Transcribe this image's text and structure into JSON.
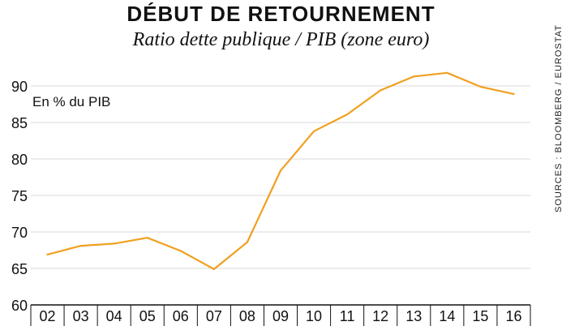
{
  "header": {
    "title": "DÉBUT DE RETOURNEMENT",
    "subtitle": "Ratio dette publique / PIB (zone euro)"
  },
  "source": "SOURCES : BLOOMBERG / EUROSTAT",
  "colors": {
    "line": "#f0a020",
    "grid": "#d9d9d9",
    "axis": "#111111"
  },
  "chart_data": {
    "type": "line",
    "title": "DÉBUT DE RETOURNEMENT",
    "subtitle": "Ratio dette publique / PIB (zone euro)",
    "unit_label": "En % du PIB",
    "categories": [
      "02",
      "03",
      "04",
      "05",
      "06",
      "07",
      "08",
      "09",
      "10",
      "11",
      "12",
      "13",
      "14",
      "15",
      "16"
    ],
    "series": [
      {
        "values": [
          66.9,
          68.1,
          68.4,
          69.2,
          67.4,
          64.9,
          68.6,
          78.4,
          83.8,
          86.1,
          89.4,
          91.3,
          91.8,
          89.9,
          88.9
        ]
      }
    ],
    "yticks": [
      60,
      65,
      70,
      75,
      80,
      85,
      90
    ],
    "ylim": [
      60,
      92
    ],
    "grid": true,
    "legend": "none"
  }
}
